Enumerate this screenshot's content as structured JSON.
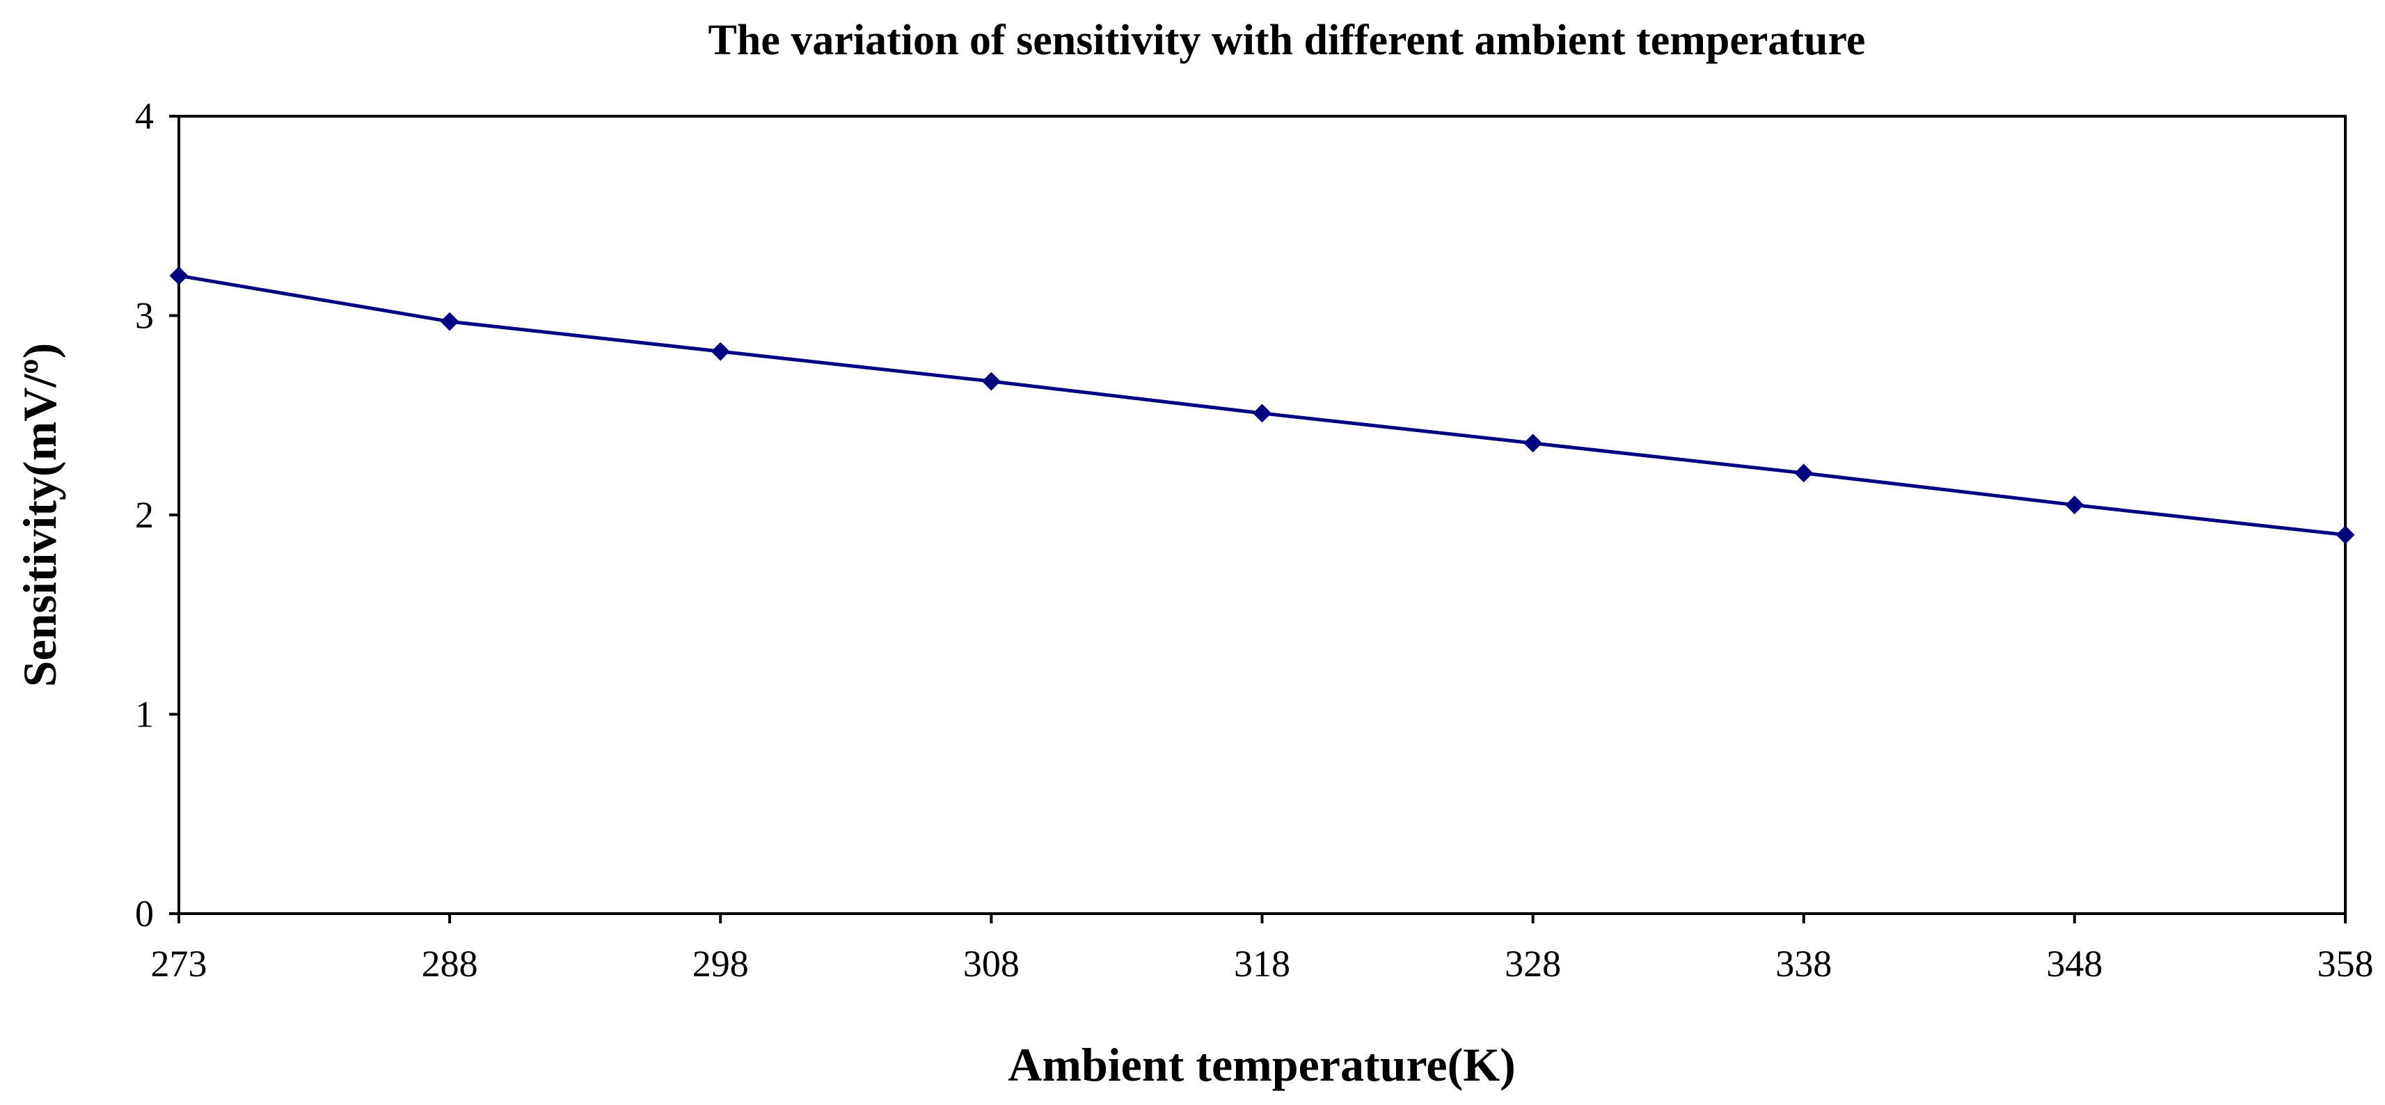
{
  "chart_data": {
    "type": "line",
    "title": "The variation of sensitivity with different ambient temperature",
    "xlabel": "Ambient temperature(K)",
    "ylabel": "Sensitivity(mV/º)",
    "categories": [
      "273",
      "288",
      "298",
      "308",
      "318",
      "328",
      "338",
      "348",
      "358"
    ],
    "yticks": [
      "0",
      "1",
      "2",
      "3",
      "4"
    ],
    "ylim": [
      0,
      4
    ],
    "grid": false,
    "legend": "none",
    "series": [
      {
        "name": "Sensitivity",
        "values": [
          3.2,
          2.97,
          2.82,
          2.67,
          2.51,
          2.36,
          2.21,
          2.05,
          1.9
        ]
      }
    ],
    "colors": {
      "series": "#000080",
      "axis": "#000000"
    }
  }
}
